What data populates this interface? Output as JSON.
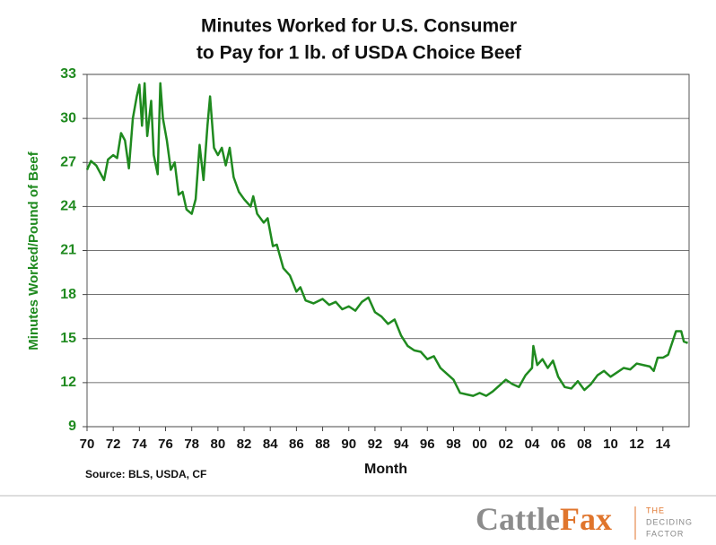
{
  "chart_data": {
    "type": "line",
    "title": [
      "Minutes Worked for U.S. Consumer",
      "to Pay for 1 lb. of USDA Choice Beef"
    ],
    "y_label": "Minutes Worked/Pound of Beef",
    "x_label": "Month",
    "source": "Source: BLS, USDA, CF",
    "color": "#1f8a1f",
    "grid": true,
    "ylim": [
      9,
      33
    ],
    "yticks": [
      9,
      12,
      15,
      18,
      21,
      24,
      27,
      30,
      33
    ],
    "xlim": [
      1970,
      2016
    ],
    "xticks": [
      {
        "value": 1970,
        "label": "70"
      },
      {
        "value": 1972,
        "label": "72"
      },
      {
        "value": 1974,
        "label": "74"
      },
      {
        "value": 1976,
        "label": "76"
      },
      {
        "value": 1978,
        "label": "78"
      },
      {
        "value": 1980,
        "label": "80"
      },
      {
        "value": 1982,
        "label": "82"
      },
      {
        "value": 1984,
        "label": "84"
      },
      {
        "value": 1986,
        "label": "86"
      },
      {
        "value": 1988,
        "label": "88"
      },
      {
        "value": 1990,
        "label": "90"
      },
      {
        "value": 1992,
        "label": "92"
      },
      {
        "value": 1994,
        "label": "94"
      },
      {
        "value": 1996,
        "label": "96"
      },
      {
        "value": 1998,
        "label": "98"
      },
      {
        "value": 2000,
        "label": "00"
      },
      {
        "value": 2002,
        "label": "02"
      },
      {
        "value": 2004,
        "label": "04"
      },
      {
        "value": 2006,
        "label": "06"
      },
      {
        "value": 2008,
        "label": "08"
      },
      {
        "value": 2010,
        "label": "10"
      },
      {
        "value": 2012,
        "label": "12"
      },
      {
        "value": 2014,
        "label": "14"
      }
    ],
    "x": [
      1970,
      1970.3,
      1970.7,
      1971,
      1971.3,
      1971.6,
      1972,
      1972.3,
      1972.6,
      1972.9,
      1973.2,
      1973.5,
      1973.8,
      1974.0,
      1974.2,
      1974.4,
      1974.6,
      1974.9,
      1975.1,
      1975.4,
      1975.6,
      1975.8,
      1976.1,
      1976.4,
      1976.7,
      1977,
      1977.3,
      1977.6,
      1978,
      1978.3,
      1978.6,
      1978.9,
      1979.2,
      1979.4,
      1979.7,
      1980,
      1980.3,
      1980.6,
      1980.9,
      1981.2,
      1981.6,
      1982,
      1982.5,
      1982.7,
      1983,
      1983.5,
      1983.8,
      1984.2,
      1984.5,
      1985,
      1985.5,
      1986,
      1986.3,
      1986.7,
      1987.3,
      1988,
      1988.5,
      1989,
      1989.5,
      1990,
      1990.5,
      1991,
      1991.5,
      1992,
      1992.5,
      1993,
      1993.5,
      1994,
      1994.5,
      1995,
      1995.5,
      1996,
      1996.5,
      1997,
      1997.5,
      1998,
      1998.5,
      1999,
      1999.5,
      2000,
      2000.5,
      2001,
      2001.5,
      2002,
      2002.5,
      2003,
      2003.5,
      2004,
      2004.1,
      2004.4,
      2004.8,
      2005.2,
      2005.6,
      2006,
      2006.5,
      2007,
      2007.5,
      2008,
      2008.5,
      2009,
      2009.5,
      2010,
      2010.5,
      2011,
      2011.5,
      2012,
      2012.5,
      2013,
      2013.3,
      2013.6,
      2014,
      2014.4,
      2014.7,
      2015,
      2015.4,
      2015.6,
      2015.9
    ],
    "values": [
      26.5,
      27.1,
      26.8,
      26.3,
      25.8,
      27.2,
      27.5,
      27.3,
      29.0,
      28.5,
      26.6,
      30.0,
      31.5,
      32.3,
      29.5,
      32.4,
      28.8,
      31.2,
      27.5,
      26.2,
      32.4,
      30.0,
      28.5,
      26.5,
      27.0,
      24.8,
      25.0,
      23.8,
      23.5,
      24.5,
      28.2,
      25.8,
      29.5,
      31.5,
      28.0,
      27.5,
      28.0,
      26.8,
      28.0,
      26.0,
      25.0,
      24.5,
      24.0,
      24.7,
      23.5,
      22.9,
      23.2,
      21.3,
      21.4,
      19.8,
      19.3,
      18.2,
      18.5,
      17.6,
      17.4,
      17.7,
      17.3,
      17.5,
      17.0,
      17.2,
      16.9,
      17.5,
      17.8,
      16.8,
      16.5,
      16.0,
      16.3,
      15.2,
      14.5,
      14.2,
      14.1,
      13.6,
      13.8,
      13.0,
      12.6,
      12.2,
      11.3,
      11.2,
      11.1,
      11.3,
      11.1,
      11.4,
      11.8,
      12.2,
      11.9,
      11.7,
      12.5,
      13.0,
      14.5,
      13.2,
      13.6,
      13.0,
      13.5,
      12.4,
      11.7,
      11.6,
      12.1,
      11.5,
      11.9,
      12.5,
      12.8,
      12.4,
      12.7,
      13.0,
      12.9,
      13.3,
      13.2,
      13.1,
      12.8,
      13.7,
      13.7,
      13.9,
      14.7,
      15.5,
      15.5,
      14.8,
      14.7
    ]
  },
  "footer": {
    "brand": [
      "Cattle",
      "Fax"
    ],
    "tagline": [
      "THE",
      "DECIDING",
      "FACTOR"
    ]
  }
}
